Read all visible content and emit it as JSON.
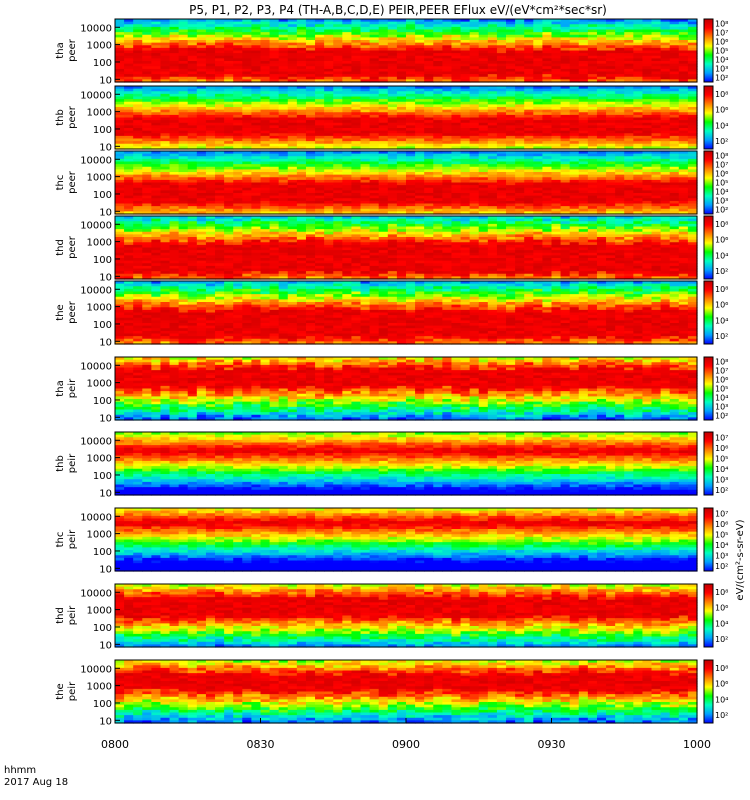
{
  "chart_data": {
    "type": "heatmap",
    "title": "P5, P1, P2, P3, P4 (TH-A,B,C,D,E) PEIR,PEER EFlux eV/(eV*cm²*sec*sr)",
    "xlabel": "hhmm",
    "xlabel_date": "2017 Aug 18",
    "x_ticks": [
      "0800",
      "0830",
      "0900",
      "0930",
      "1000"
    ],
    "x_range": [
      "08:00",
      "10:00"
    ],
    "y_scale": "log",
    "y_unit": "eV",
    "colorbar_label": "eV/(cm²-s-sr-eV)",
    "palette": [
      "#0000ff",
      "#00a0ff",
      "#00ffc0",
      "#00ff00",
      "#ffff00",
      "#ff8000",
      "#ff0000",
      "#c00000"
    ],
    "panels": [
      {
        "label": "tha peer",
        "species": "electron",
        "probe": "A",
        "yticks": [
          "10",
          "100",
          "1000",
          "10000"
        ],
        "ylim": [
          7,
          30000
        ],
        "cbar_ticks": [
          "10²",
          "10³",
          "10⁴",
          "10⁵",
          "10⁶",
          "10⁷",
          "10⁸"
        ],
        "core_log_energy": [
          1.15,
          2.7
        ],
        "texture": 0.6
      },
      {
        "label": "thb peer",
        "species": "electron",
        "probe": "B",
        "yticks": [
          "10",
          "100",
          "1000",
          "10000"
        ],
        "ylim": [
          7,
          30000
        ],
        "cbar_ticks": [
          "10²",
          "10⁴",
          "10⁶",
          "10⁸"
        ],
        "core_log_energy": [
          1.7,
          2.6
        ],
        "texture": 0.15
      },
      {
        "label": "thc peer",
        "species": "electron",
        "probe": "C",
        "yticks": [
          "10",
          "100",
          "1000",
          "10000"
        ],
        "ylim": [
          7,
          30000
        ],
        "cbar_ticks": [
          "10²",
          "10³",
          "10⁴",
          "10⁵",
          "10⁶",
          "10⁷",
          "10⁸"
        ],
        "core_log_energy": [
          1.5,
          2.6
        ],
        "texture": 0.2
      },
      {
        "label": "thd peer",
        "species": "electron",
        "probe": "D",
        "yticks": [
          "10",
          "100",
          "1000",
          "10000"
        ],
        "ylim": [
          7,
          30000
        ],
        "cbar_ticks": [
          "10²",
          "10⁴",
          "10⁶",
          "10⁸"
        ],
        "core_log_energy": [
          1.2,
          2.9
        ],
        "texture": 0.55
      },
      {
        "label": "the peer",
        "species": "electron",
        "probe": "E",
        "yticks": [
          "10",
          "100",
          "1000",
          "10000"
        ],
        "ylim": [
          7,
          30000
        ],
        "cbar_ticks": [
          "10²",
          "10⁴",
          "10⁶",
          "10⁸"
        ],
        "core_log_energy": [
          1.2,
          2.8
        ],
        "texture": 0.6
      },
      {
        "label": "tha peir",
        "species": "ion",
        "probe": "A",
        "yticks": [
          "10",
          "100",
          "1000",
          "10000"
        ],
        "ylim": [
          7,
          30000
        ],
        "cbar_ticks": [
          "10²",
          "10³",
          "10⁴",
          "10⁵",
          "10⁶",
          "10⁷",
          "10⁸"
        ],
        "core_log_energy": [
          2.7,
          3.8
        ],
        "texture": 0.7
      },
      {
        "label": "thb peir",
        "species": "ion",
        "probe": "B",
        "yticks": [
          "10",
          "100",
          "1000",
          "10000"
        ],
        "ylim": [
          7,
          30000
        ],
        "cbar_ticks": [
          "10²",
          "10³",
          "10⁴",
          "10⁵",
          "10⁶",
          "10⁷"
        ],
        "core_log_energy": [
          3.3,
          3.45
        ],
        "texture": 0.1
      },
      {
        "label": "thc peir",
        "species": "ion",
        "probe": "C",
        "yticks": [
          "10",
          "100",
          "1000",
          "10000"
        ],
        "ylim": [
          7,
          30000
        ],
        "cbar_ticks": [
          "10²",
          "10³",
          "10⁴",
          "10⁵",
          "10⁶",
          "10⁷"
        ],
        "core_log_energy": [
          3.55,
          3.65
        ],
        "texture": 0.1
      },
      {
        "label": "thd peir",
        "species": "ion",
        "probe": "D",
        "yticks": [
          "10",
          "100",
          "1000",
          "10000"
        ],
        "ylim": [
          7,
          30000
        ],
        "cbar_ticks": [
          "10²",
          "10⁴",
          "10⁶",
          "10⁸"
        ],
        "core_log_energy": [
          2.6,
          3.7
        ],
        "texture": 0.5
      },
      {
        "label": "the peir",
        "species": "ion",
        "probe": "E",
        "yticks": [
          "10",
          "100",
          "1000",
          "10000"
        ],
        "ylim": [
          7,
          30000
        ],
        "cbar_ticks": [
          "10²",
          "10⁴",
          "10⁶",
          "10⁸"
        ],
        "core_log_energy": [
          2.7,
          3.7
        ],
        "texture": 0.7
      }
    ]
  }
}
